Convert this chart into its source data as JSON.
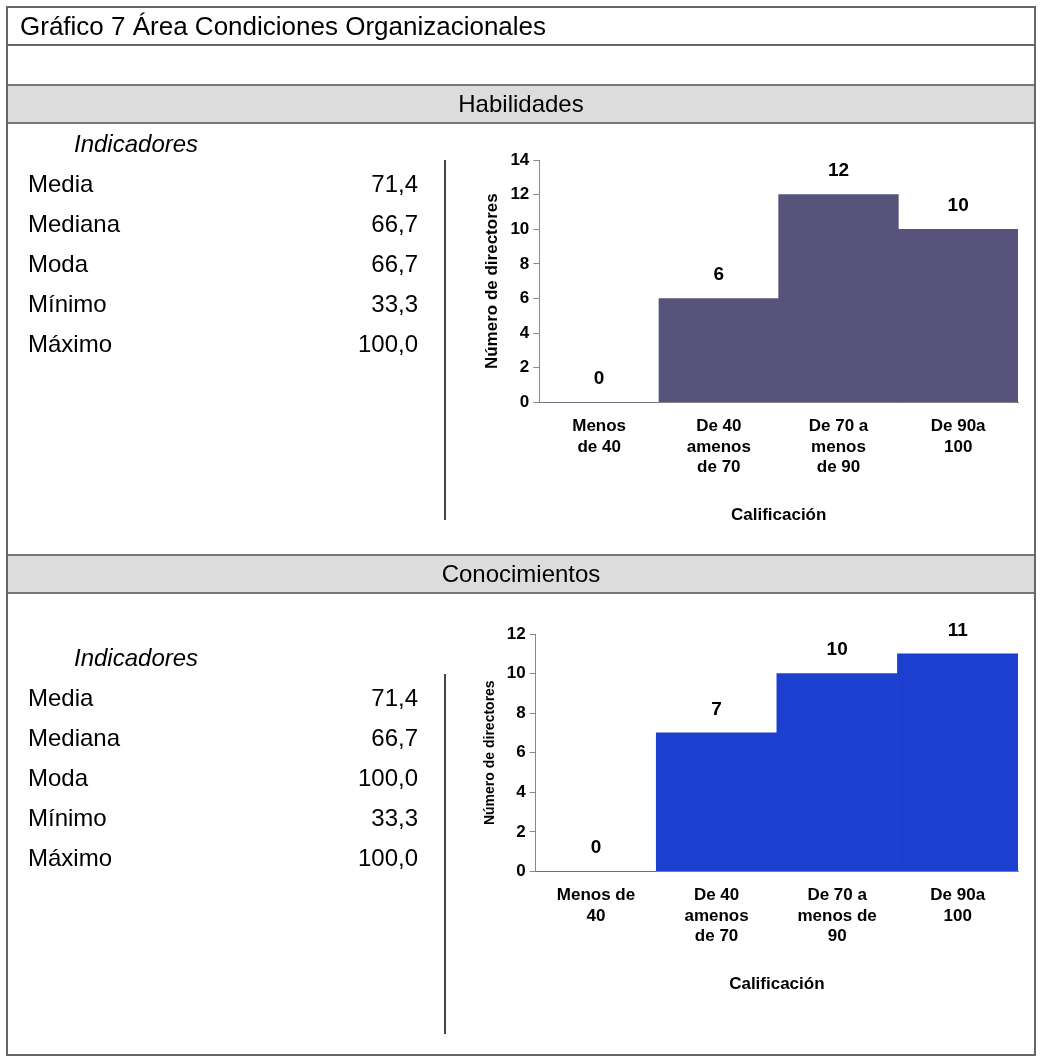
{
  "chart_data": [
    {
      "type": "other",
      "title": "Gráfico 7 Área Condiciones Organizacionales",
      "subtitle": "Habilidades",
      "annotations": [
        "Indicadores",
        "Media",
        "71,4",
        "Mediana",
        "66,7",
        "Moda",
        "66,7",
        "Mínimo",
        "33,3",
        "Máximo",
        "100,0"
      ]
    },
    {
      "type": "bar",
      "categories": [
        "Menos de 40",
        "De 40 amenos de 70",
        "De 70 a menos de 90",
        "De 90a 100"
      ],
      "values": [
        0,
        6,
        12,
        10
      ],
      "color": "#57537a",
      "ylim": [
        0,
        14
      ],
      "yticks": [
        0,
        2,
        4,
        6,
        8,
        10,
        12,
        14
      ],
      "ylabel": "Número de directores",
      "xlabel": "Calificación",
      "data_labels": true,
      "grid": false,
      "legend": false
    },
    {
      "type": "other",
      "subtitle": "Conocimientos",
      "annotations": [
        "Indicadores",
        "Media",
        "71,4",
        "Mediana",
        "66,7",
        "Moda",
        "100,0",
        "Mínimo",
        "33,3",
        "Máximo",
        "100,0"
      ]
    },
    {
      "type": "bar",
      "categories": [
        "Menos de 40",
        "De 40 amenos de 70",
        "De 70 a menos de 90",
        "De 90a 100"
      ],
      "values": [
        0,
        7,
        10,
        11
      ],
      "color": "#1d3fcf",
      "ylim": [
        0,
        12
      ],
      "yticks": [
        0,
        2,
        4,
        6,
        8,
        10,
        12
      ],
      "ylabel": "Número de directores",
      "xlabel": "Calificación",
      "data_labels": true,
      "grid": false,
      "legend": false
    }
  ]
}
